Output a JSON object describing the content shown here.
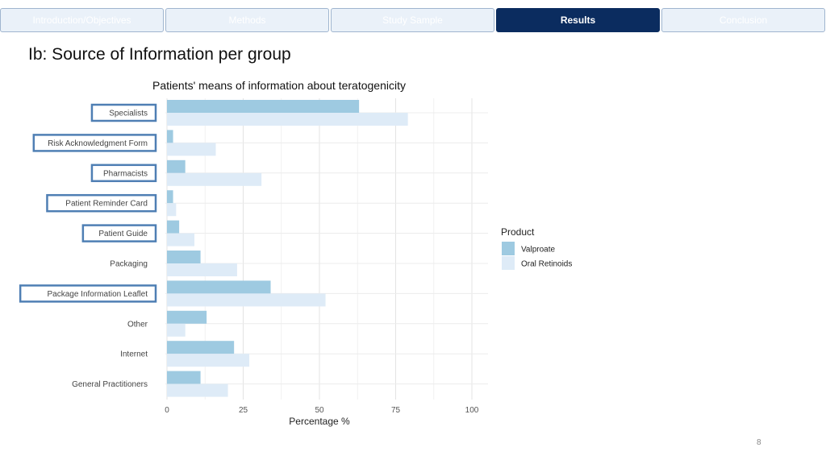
{
  "nav": {
    "tabs": [
      {
        "label": "Introduction/Objectives",
        "active": false
      },
      {
        "label": "Methods",
        "active": false
      },
      {
        "label": "Study Sample",
        "active": false
      },
      {
        "label": "Results",
        "active": true
      },
      {
        "label": "Conclusion",
        "active": false
      }
    ]
  },
  "page": {
    "title": "Ib: Source of Information per group",
    "number": "8"
  },
  "chart_data": {
    "type": "bar",
    "orientation": "horizontal",
    "title": "Patients' means of information about teratogenicity",
    "xlabel": "Percentage %",
    "ylabel": "",
    "xlim": [
      0,
      100
    ],
    "xticks": [
      0,
      25,
      50,
      75,
      100
    ],
    "grid": true,
    "legend_title": "Product",
    "legend_position": "right",
    "categories": [
      "Specialists",
      "Risk Acknowledgment Form",
      "Pharmacists",
      "Patient Reminder Card",
      "Patient Guide",
      "Packaging",
      "Package Information Leaflet",
      "Other",
      "Internet",
      "General Practitioners"
    ],
    "highlighted": [
      true,
      true,
      true,
      true,
      true,
      false,
      true,
      false,
      false,
      false
    ],
    "series": [
      {
        "name": "Valproate",
        "color": "#9ecae1",
        "values": [
          63,
          2,
          6,
          2,
          4,
          11,
          34,
          13,
          22,
          11
        ]
      },
      {
        "name": "Oral Retinoids",
        "color": "#deebf7",
        "values": [
          79,
          16,
          31,
          3,
          9,
          23,
          52,
          6,
          27,
          20
        ]
      }
    ],
    "highlight_border_color": "#4f7fb4"
  }
}
